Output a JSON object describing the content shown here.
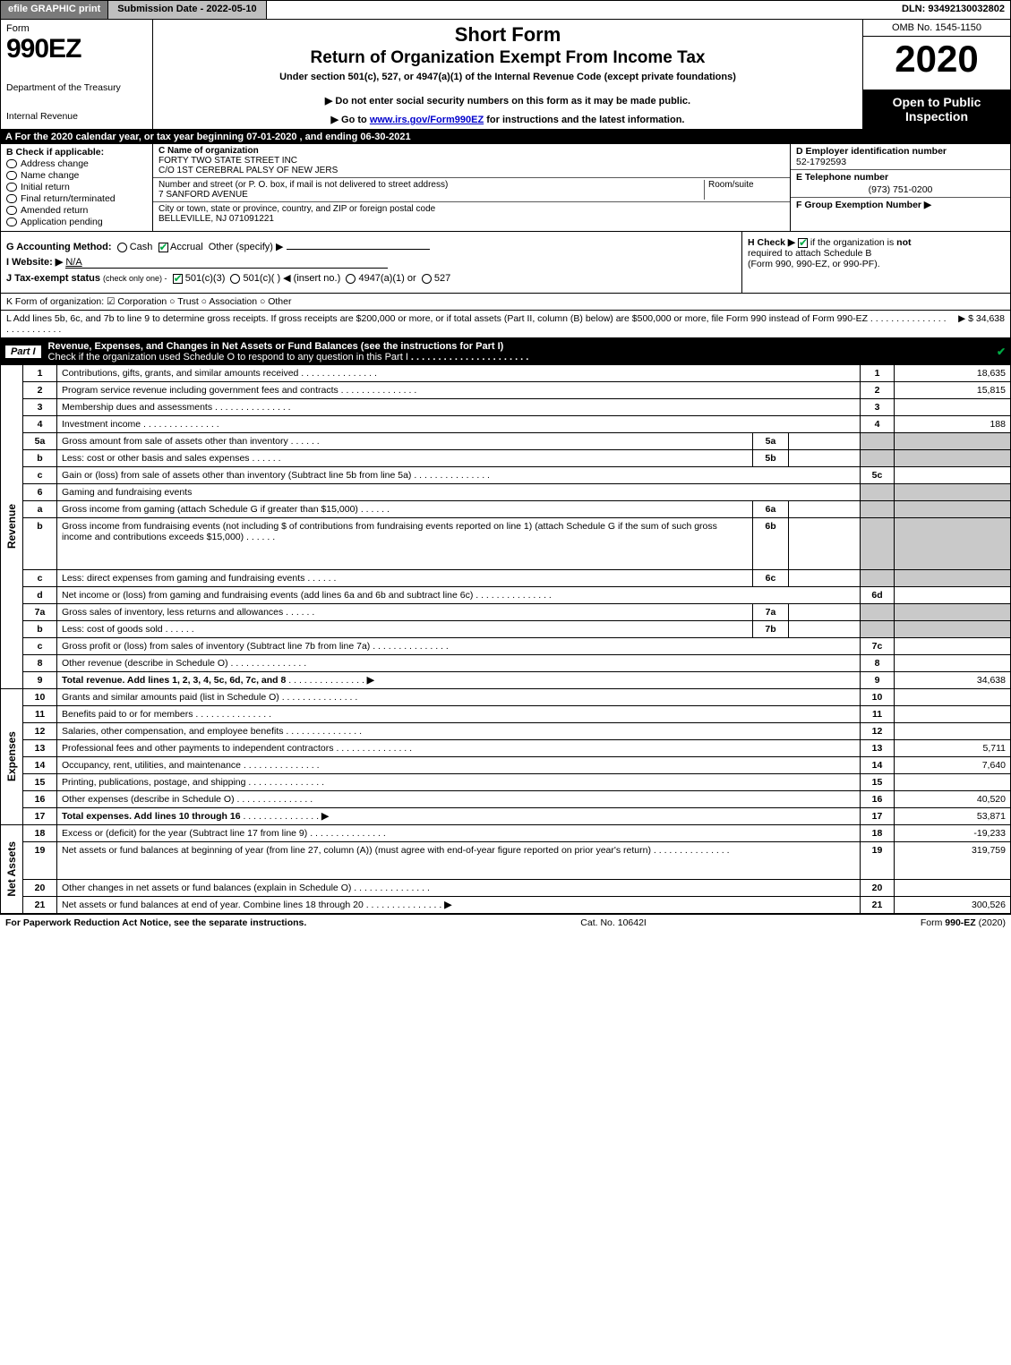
{
  "top_bar": {
    "efile": "efile GRAPHIC print",
    "submission": "Submission Date - 2022-05-10",
    "dln": "DLN: 93492130032802"
  },
  "header": {
    "form_label": "Form",
    "form_number": "990EZ",
    "dept1": "Department of the Treasury",
    "dept2": "Internal Revenue",
    "short_form": "Short Form",
    "return_line": "Return of Organization Exempt From Income Tax",
    "under": "Under section 501(c), 527, or 4947(a)(1) of the Internal Revenue Code (except private foundations)",
    "donot": "▶ Do not enter social security numbers on this form as it may be made public.",
    "goto_pre": "▶ Go to ",
    "goto_link": "www.irs.gov/Form990EZ",
    "goto_post": " for instructions and the latest information.",
    "omb": "OMB No. 1545-1150",
    "year": "2020",
    "open": "Open to Public Inspection"
  },
  "row_a": "A   For the 2020 calendar year, or tax year beginning 07-01-2020 , and ending 06-30-2021",
  "col_b": {
    "label": "B  Check if applicable:",
    "opts": [
      "Address change",
      "Name change",
      "Initial return",
      "Final return/terminated",
      "Amended return",
      "Application pending"
    ]
  },
  "col_c": {
    "name_lbl": "C Name of organization",
    "name1": "FORTY TWO STATE STREET INC",
    "name2": "C/O 1ST CEREBRAL PALSY OF NEW JERS",
    "street_lbl": "Number and street (or P. O. box, if mail is not delivered to street address)",
    "room_lbl": "Room/suite",
    "street": "7 SANFORD AVENUE",
    "city_lbl": "City or town, state or province, country, and ZIP or foreign postal code",
    "city": "BELLEVILLE, NJ  071091221"
  },
  "col_de": {
    "d_lbl": "D Employer identification number",
    "d_val": "52-1792593",
    "e_lbl": "E Telephone number",
    "e_val": "(973) 751-0200",
    "f_lbl": "F Group Exemption Number  ▶"
  },
  "row_g": {
    "g_label": "G Accounting Method:",
    "g_cash": "Cash",
    "g_accrual": "Accrual",
    "g_other": "Other (specify) ▶",
    "i_label": "I Website: ▶",
    "i_val": "N/A",
    "j_label": "J Tax-exempt status",
    "j_small": "(check only one) -",
    "j_501c3": "501(c)(3)",
    "j_501c": "501(c)(   ) ◀ (insert no.)",
    "j_4947": "4947(a)(1) or",
    "j_527": "527"
  },
  "row_h": {
    "h_label": "H  Check ▶",
    "h_text1": " if the organization is ",
    "h_not": "not",
    "h_text2": " required to attach Schedule B",
    "h_text3": "(Form 990, 990-EZ, or 990-PF)."
  },
  "row_k": "K Form of organization:   ☑ Corporation   ○ Trust   ○ Association   ○ Other",
  "row_l": {
    "text": "L Add lines 5b, 6c, and 7b to line 9 to determine gross receipts. If gross receipts are $200,000 or more, or if total assets (Part II, column (B) below) are $500,000 or more, file Form 990 instead of Form 990-EZ",
    "amt": "▶ $ 34,638"
  },
  "part1": {
    "label": "Part I",
    "title": "Revenue, Expenses, and Changes in Net Assets or Fund Balances (see the instructions for Part I)",
    "sub": "Check if the organization used Schedule O to respond to any question in this Part I",
    "checked": true
  },
  "sections": {
    "revenue": "Revenue",
    "expenses": "Expenses",
    "netassets": "Net Assets"
  },
  "lines": [
    {
      "n": "1",
      "d": "Contributions, gifts, grants, and similar amounts received",
      "r": "1",
      "a": "18,635"
    },
    {
      "n": "2",
      "d": "Program service revenue including government fees and contracts",
      "r": "2",
      "a": "15,815"
    },
    {
      "n": "3",
      "d": "Membership dues and assessments",
      "r": "3",
      "a": ""
    },
    {
      "n": "4",
      "d": "Investment income",
      "r": "4",
      "a": "188"
    },
    {
      "n": "5a",
      "d": "Gross amount from sale of assets other than inventory",
      "box": "5a",
      "boxv": "",
      "shaded_r": true
    },
    {
      "n": "b",
      "d": "Less: cost or other basis and sales expenses",
      "box": "5b",
      "boxv": "",
      "shaded_r": true
    },
    {
      "n": "c",
      "d": "Gain or (loss) from sale of assets other than inventory (Subtract line 5b from line 5a)",
      "r": "5c",
      "a": ""
    },
    {
      "n": "6",
      "d": "Gaming and fundraising events",
      "shaded_r": true,
      "noboxes": true
    },
    {
      "n": "a",
      "d": "Gross income from gaming (attach Schedule G if greater than $15,000)",
      "box": "6a",
      "boxv": "",
      "shaded_r": true
    },
    {
      "n": "b",
      "d": "Gross income from fundraising events (not including $                    of contributions from fundraising events reported on line 1) (attach Schedule G if the sum of such gross income and contributions exceeds $15,000)",
      "box": "6b",
      "boxv": "",
      "shaded_r": true,
      "tall": true
    },
    {
      "n": "c",
      "d": "Less: direct expenses from gaming and fundraising events",
      "box": "6c",
      "boxv": "",
      "shaded_r": true
    },
    {
      "n": "d",
      "d": "Net income or (loss) from gaming and fundraising events (add lines 6a and 6b and subtract line 6c)",
      "r": "6d",
      "a": ""
    },
    {
      "n": "7a",
      "d": "Gross sales of inventory, less returns and allowances",
      "box": "7a",
      "boxv": "",
      "shaded_r": true
    },
    {
      "n": "b",
      "d": "Less: cost of goods sold",
      "box": "7b",
      "boxv": "",
      "shaded_r": true
    },
    {
      "n": "c",
      "d": "Gross profit or (loss) from sales of inventory (Subtract line 7b from line 7a)",
      "r": "7c",
      "a": ""
    },
    {
      "n": "8",
      "d": "Other revenue (describe in Schedule O)",
      "r": "8",
      "a": ""
    },
    {
      "n": "9",
      "d": "Total revenue. Add lines 1, 2, 3, 4, 5c, 6d, 7c, and 8",
      "r": "9",
      "a": "34,638",
      "bold": true,
      "arrow": true
    }
  ],
  "exp_lines": [
    {
      "n": "10",
      "d": "Grants and similar amounts paid (list in Schedule O)",
      "r": "10",
      "a": ""
    },
    {
      "n": "11",
      "d": "Benefits paid to or for members",
      "r": "11",
      "a": ""
    },
    {
      "n": "12",
      "d": "Salaries, other compensation, and employee benefits",
      "r": "12",
      "a": ""
    },
    {
      "n": "13",
      "d": "Professional fees and other payments to independent contractors",
      "r": "13",
      "a": "5,711"
    },
    {
      "n": "14",
      "d": "Occupancy, rent, utilities, and maintenance",
      "r": "14",
      "a": "7,640"
    },
    {
      "n": "15",
      "d": "Printing, publications, postage, and shipping",
      "r": "15",
      "a": ""
    },
    {
      "n": "16",
      "d": "Other expenses (describe in Schedule O)",
      "r": "16",
      "a": "40,520"
    },
    {
      "n": "17",
      "d": "Total expenses. Add lines 10 through 16",
      "r": "17",
      "a": "53,871",
      "bold": true,
      "arrow": true
    }
  ],
  "na_lines": [
    {
      "n": "18",
      "d": "Excess or (deficit) for the year (Subtract line 17 from line 9)",
      "r": "18",
      "a": "-19,233"
    },
    {
      "n": "19",
      "d": "Net assets or fund balances at beginning of year (from line 27, column (A)) (must agree with end-of-year figure reported on prior year's return)",
      "r": "19",
      "a": "319,759",
      "tall": true
    },
    {
      "n": "20",
      "d": "Other changes in net assets or fund balances (explain in Schedule O)",
      "r": "20",
      "a": ""
    },
    {
      "n": "21",
      "d": "Net assets or fund balances at end of year. Combine lines 18 through 20",
      "r": "21",
      "a": "300,526",
      "arrow": true
    }
  ],
  "footer": {
    "left": "For Paperwork Reduction Act Notice, see the separate instructions.",
    "center": "Cat. No. 10642I",
    "right": "Form 990-EZ (2020)"
  }
}
